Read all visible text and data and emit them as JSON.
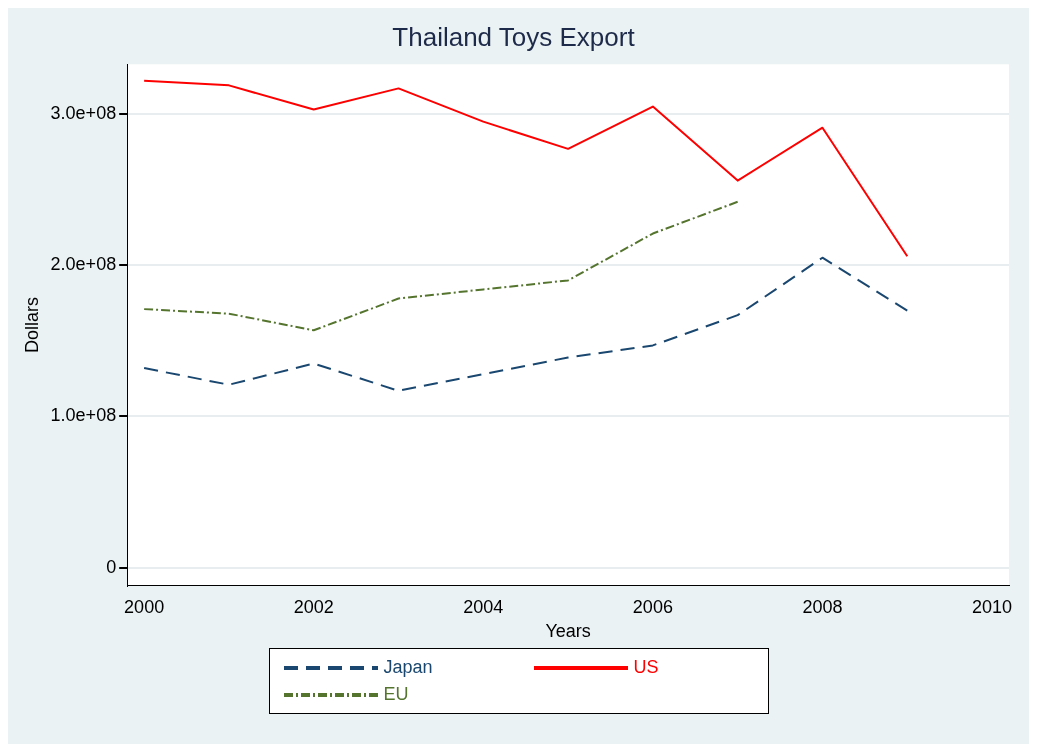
{
  "chart_data": {
    "type": "line",
    "title": "Thailand Toys Export",
    "xlabel": "Years",
    "ylabel": "Dollars",
    "x": [
      2000,
      2001,
      2002,
      2003,
      2004,
      2005,
      2006,
      2007,
      2008,
      2009
    ],
    "series": [
      {
        "name": "Japan",
        "color": "#1a476f",
        "line_style": "dashed",
        "values": [
          132000000,
          121000000,
          135000000,
          117000000,
          128000000,
          139000000,
          147000000,
          167000000,
          205000000,
          170000000
        ]
      },
      {
        "name": "US",
        "color": "#ff0000",
        "line_style": "solid",
        "values": [
          322000000,
          319000000,
          303000000,
          317000000,
          295000000,
          277000000,
          305000000,
          256000000,
          291000000,
          206000000
        ]
      },
      {
        "name": "EU",
        "color": "#55752f",
        "line_style": "dashdot",
        "values": [
          171000000,
          168000000,
          157000000,
          178000000,
          184000000,
          190000000,
          221000000,
          242000000,
          null,
          null
        ]
      }
    ],
    "xlim": [
      1999.8,
      2010.2
    ],
    "xticks": [
      2000,
      2002,
      2004,
      2006,
      2008,
      2010
    ],
    "ylim": [
      -12000000,
      333000000
    ],
    "yticks": [
      {
        "value": 0,
        "label": "0"
      },
      {
        "value": 100000000,
        "label": "1.0e+08"
      },
      {
        "value": 200000000,
        "label": "2.0e+08"
      },
      {
        "value": 300000000,
        "label": "3.0e+08"
      }
    ],
    "grid": "y",
    "legend": "bottom",
    "marker": "none"
  }
}
